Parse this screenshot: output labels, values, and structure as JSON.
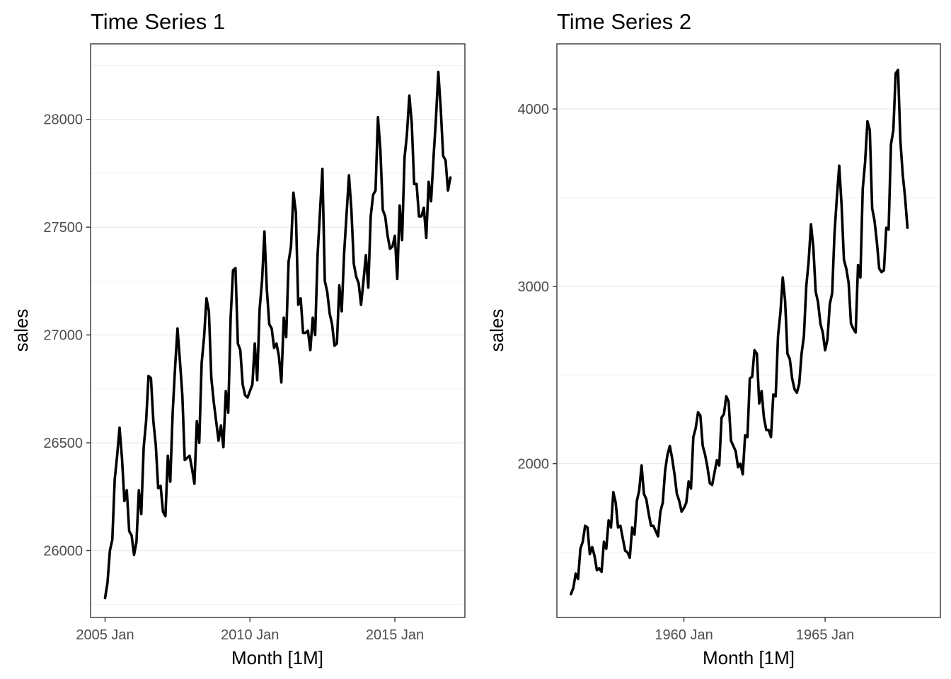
{
  "chart_data": [
    {
      "type": "line",
      "title": "Time Series 1",
      "xlabel": "Month [1M]",
      "ylabel": "sales",
      "grid": true,
      "x_ticks": [
        {
          "label": "2005 Jan",
          "value": "2005-01"
        },
        {
          "label": "2010 Jan",
          "value": "2010-01"
        },
        {
          "label": "2015 Jan",
          "value": "2015-01"
        }
      ],
      "y_ticks": [
        {
          "label": "26000",
          "value": 26000
        },
        {
          "label": "26500",
          "value": 26500
        },
        {
          "label": "27000",
          "value": 27000
        },
        {
          "label": "27500",
          "value": 27500
        },
        {
          "label": "28000",
          "value": 28000
        }
      ],
      "xlim": [
        "2004-07",
        "2017-06"
      ],
      "ylim": [
        25690,
        28350
      ],
      "series": [
        {
          "x": [
            "2005-01",
            "2005-02",
            "2005-03",
            "2005-04",
            "2005-05",
            "2005-06",
            "2005-07",
            "2005-08",
            "2005-09",
            "2005-10",
            "2005-11",
            "2005-12",
            "2006-01",
            "2006-02",
            "2006-03",
            "2006-04",
            "2006-05",
            "2006-06",
            "2006-07",
            "2006-08",
            "2006-09",
            "2006-10",
            "2006-11",
            "2006-12",
            "2007-01",
            "2007-02",
            "2007-03",
            "2007-04",
            "2007-05",
            "2007-06",
            "2007-07",
            "2007-08",
            "2007-09",
            "2007-10",
            "2007-11",
            "2007-12",
            "2008-01",
            "2008-02",
            "2008-03",
            "2008-04",
            "2008-05",
            "2008-06",
            "2008-07",
            "2008-08",
            "2008-09",
            "2008-10",
            "2008-11",
            "2008-12",
            "2009-01",
            "2009-02",
            "2009-03",
            "2009-04",
            "2009-05",
            "2009-06",
            "2009-07",
            "2009-08",
            "2009-09",
            "2009-10",
            "2009-11",
            "2009-12",
            "2010-01",
            "2010-02",
            "2010-03",
            "2010-04",
            "2010-05",
            "2010-06",
            "2010-07",
            "2010-08",
            "2010-09",
            "2010-10",
            "2010-11",
            "2010-12",
            "2011-01",
            "2011-02",
            "2011-03",
            "2011-04",
            "2011-05",
            "2011-06",
            "2011-07",
            "2011-08",
            "2011-09",
            "2011-10",
            "2011-11",
            "2011-12",
            "2012-01",
            "2012-02",
            "2012-03",
            "2012-04",
            "2012-05",
            "2012-06",
            "2012-07",
            "2012-08",
            "2012-09",
            "2012-10",
            "2012-11",
            "2012-12",
            "2013-01",
            "2013-02",
            "2013-03",
            "2013-04",
            "2013-05",
            "2013-06",
            "2013-07",
            "2013-08",
            "2013-09",
            "2013-10",
            "2013-11",
            "2013-12",
            "2014-01",
            "2014-02",
            "2014-03",
            "2014-04",
            "2014-05",
            "2014-06",
            "2014-07",
            "2014-08",
            "2014-09",
            "2014-10",
            "2014-11",
            "2014-12",
            "2015-01",
            "2015-02",
            "2015-03",
            "2015-04",
            "2015-05",
            "2015-06",
            "2015-07",
            "2015-08",
            "2015-09",
            "2015-10",
            "2015-11",
            "2015-12",
            "2016-01",
            "2016-02",
            "2016-03",
            "2016-04",
            "2016-05",
            "2016-06",
            "2016-07",
            "2016-08",
            "2016-09",
            "2016-10",
            "2016-11",
            "2016-12"
          ],
          "values": [
            25780,
            25850,
            26000,
            26050,
            26330,
            26440,
            26570,
            26430,
            26230,
            26280,
            26090,
            26070,
            25980,
            26040,
            26280,
            26170,
            26480,
            26600,
            26810,
            26800,
            26600,
            26490,
            26290,
            26300,
            26180,
            26160,
            26440,
            26320,
            26640,
            26850,
            27030,
            26880,
            26720,
            26420,
            26430,
            26440,
            26380,
            26310,
            26600,
            26500,
            26870,
            26990,
            27170,
            27110,
            26800,
            26690,
            26600,
            26510,
            26580,
            26480,
            26740,
            26640,
            27080,
            27300,
            27310,
            26960,
            26930,
            26770,
            26720,
            26710,
            26740,
            26770,
            26960,
            26790,
            27120,
            27250,
            27480,
            27210,
            27050,
            27030,
            26940,
            26960,
            26900,
            26780,
            27080,
            26990,
            27340,
            27410,
            27660,
            27570,
            27140,
            27170,
            27010,
            27010,
            27020,
            26930,
            27080,
            27000,
            27370,
            27570,
            27770,
            27250,
            27200,
            27100,
            27050,
            26950,
            26960,
            27230,
            27110,
            27380,
            27560,
            27740,
            27580,
            27330,
            27270,
            27240,
            27140,
            27250,
            27370,
            27220,
            27550,
            27650,
            27670,
            28010,
            27860,
            27580,
            27550,
            27460,
            27400,
            27410,
            27460,
            27260,
            27600,
            27440,
            27820,
            27930,
            28110,
            27980,
            27700,
            27700,
            27550,
            27550,
            27590,
            27450,
            27710,
            27620,
            27820,
            28000,
            28220,
            28050,
            27830,
            27810,
            27670,
            27730
          ]
        }
      ]
    },
    {
      "type": "line",
      "title": "Time Series 2",
      "xlabel": "Month [1M]",
      "ylabel": "sales",
      "grid": true,
      "x_ticks": [
        {
          "label": "1960 Jan",
          "value": "1960-01"
        },
        {
          "label": "1965 Jan",
          "value": "1965-01"
        }
      ],
      "y_ticks": [
        {
          "label": "2000",
          "value": 2000
        },
        {
          "label": "3000",
          "value": 3000
        },
        {
          "label": "4000",
          "value": 4000
        }
      ],
      "xlim": [
        "1955-07",
        "1969-02"
      ],
      "ylim": [
        1133,
        4367
      ],
      "series": [
        {
          "x": [
            "1956-01",
            "1956-02",
            "1956-03",
            "1956-04",
            "1956-05",
            "1956-06",
            "1956-07",
            "1956-08",
            "1956-09",
            "1956-10",
            "1956-11",
            "1956-12",
            "1957-01",
            "1957-02",
            "1957-03",
            "1957-04",
            "1957-05",
            "1957-06",
            "1957-07",
            "1957-08",
            "1957-09",
            "1957-10",
            "1957-11",
            "1957-12",
            "1958-01",
            "1958-02",
            "1958-03",
            "1958-04",
            "1958-05",
            "1958-06",
            "1958-07",
            "1958-08",
            "1958-09",
            "1958-10",
            "1958-11",
            "1958-12",
            "1959-01",
            "1959-02",
            "1959-03",
            "1959-04",
            "1959-05",
            "1959-06",
            "1959-07",
            "1959-08",
            "1959-09",
            "1959-10",
            "1959-11",
            "1959-12",
            "1960-01",
            "1960-02",
            "1960-03",
            "1960-04",
            "1960-05",
            "1960-06",
            "1960-07",
            "1960-08",
            "1960-09",
            "1960-10",
            "1960-11",
            "1960-12",
            "1961-01",
            "1961-02",
            "1961-03",
            "1961-04",
            "1961-05",
            "1961-06",
            "1961-07",
            "1961-08",
            "1961-09",
            "1961-10",
            "1961-11",
            "1961-12",
            "1962-01",
            "1962-02",
            "1962-03",
            "1962-04",
            "1962-05",
            "1962-06",
            "1962-07",
            "1962-08",
            "1962-09",
            "1962-10",
            "1962-11",
            "1962-12",
            "1963-01",
            "1963-02",
            "1963-03",
            "1963-04",
            "1963-05",
            "1963-06",
            "1963-07",
            "1963-08",
            "1963-09",
            "1963-10",
            "1963-11",
            "1963-12",
            "1964-01",
            "1964-02",
            "1964-03",
            "1964-04",
            "1964-05",
            "1964-06",
            "1964-07",
            "1964-08",
            "1964-09",
            "1964-10",
            "1964-11",
            "1964-12",
            "1965-01",
            "1965-02",
            "1965-03",
            "1965-04",
            "1965-05",
            "1965-06",
            "1965-07",
            "1965-08",
            "1965-09",
            "1965-10",
            "1965-11",
            "1965-12",
            "1966-01",
            "1966-02",
            "1966-03",
            "1966-04",
            "1966-05",
            "1966-06",
            "1966-07",
            "1966-08",
            "1966-09",
            "1966-10",
            "1966-11",
            "1966-12",
            "1967-01",
            "1967-02",
            "1967-03",
            "1967-04",
            "1967-05",
            "1967-06",
            "1967-07",
            "1967-08",
            "1967-09",
            "1967-10",
            "1967-11",
            "1967-12"
          ],
          "values": [
            1265,
            1300,
            1380,
            1350,
            1520,
            1560,
            1650,
            1640,
            1490,
            1530,
            1480,
            1400,
            1410,
            1390,
            1560,
            1520,
            1680,
            1640,
            1840,
            1780,
            1640,
            1650,
            1580,
            1510,
            1500,
            1470,
            1640,
            1600,
            1790,
            1850,
            1990,
            1830,
            1800,
            1720,
            1650,
            1650,
            1620,
            1590,
            1730,
            1780,
            1960,
            2050,
            2100,
            2030,
            1940,
            1830,
            1790,
            1730,
            1750,
            1780,
            1900,
            1860,
            2150,
            2200,
            2290,
            2270,
            2100,
            2050,
            1980,
            1890,
            1880,
            1950,
            2020,
            1990,
            2260,
            2280,
            2380,
            2350,
            2130,
            2100,
            2070,
            1980,
            2000,
            1940,
            2160,
            2150,
            2480,
            2490,
            2640,
            2620,
            2340,
            2410,
            2260,
            2190,
            2190,
            2150,
            2390,
            2380,
            2720,
            2850,
            3050,
            2920,
            2620,
            2590,
            2480,
            2420,
            2400,
            2450,
            2620,
            2720,
            3000,
            3140,
            3350,
            3220,
            2970,
            2910,
            2790,
            2740,
            2640,
            2700,
            2900,
            2960,
            3300,
            3500,
            3680,
            3460,
            3150,
            3100,
            3020,
            2790,
            2760,
            2740,
            3120,
            3050,
            3550,
            3700,
            3930,
            3880,
            3440,
            3370,
            3250,
            3100,
            3080,
            3090,
            3330,
            3320,
            3800,
            3880,
            4200,
            4220,
            3820,
            3630,
            3500,
            3330
          ]
        }
      ]
    }
  ]
}
